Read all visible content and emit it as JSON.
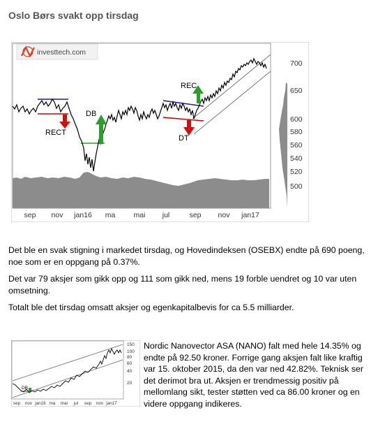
{
  "header": {
    "title": "Oslo Børs svakt opp tirsdag"
  },
  "main_chart": {
    "logo_text": "investtech.com",
    "y_ticks": [
      "700",
      "650",
      "600",
      "580",
      "560",
      "540",
      "520",
      "500"
    ],
    "x_ticks": [
      "sep",
      "nov",
      "jan16",
      "ma",
      "mai",
      "jul",
      "sep",
      "nov",
      "jan17"
    ],
    "annotations": {
      "rect_left": "RECT",
      "db": "DB",
      "rec_right": "REC",
      "dt": "DT"
    },
    "colors": {
      "price_line": "#000000",
      "channel": "#777777",
      "support_red": "#cc0000",
      "resistance_blue": "#1a1aa8",
      "buy_signal": "#2aa02a",
      "sell_signal": "#cc1111",
      "volume": "#8c8c8c"
    }
  },
  "paragraphs": {
    "p1": "Det ble en svak stigning i markedet tirsdag, og Hovedindeksen (OSEBX) endte på 690 poeng, noe som er en oppgang på 0.37%.",
    "p2": "Det var 79 aksjer som gikk opp og 111 som gikk ned, mens 19 forble uendret og 10 var uten omsetning.",
    "p3": "Totalt ble det tirsdag omsatt aksjer og egenkapitalbevis for ca 5.5 milliarder."
  },
  "stock_chart": {
    "y_ticks": [
      "150",
      "100",
      "80",
      "60",
      "40",
      "20"
    ],
    "x_ticks": [
      "sep",
      "nov",
      "jan16",
      "ma",
      "mai",
      "jul",
      "sep",
      "nov",
      "jan17"
    ],
    "annotation": "DB"
  },
  "stock_text": "Nordic Nanovector ASA (NANO) falt med hele 14.35% og endte på 92.50 kroner. Forrige gang aksjen falt like kraftig var 15. oktober 2015, da den var ned 42.82%. Teknisk ser det derimot bra ut. Aksjen er trendmessig positiv på mellomlang sikt, tester støtten ved ca 86.00 kroner og en videre oppgang indikeres."
}
